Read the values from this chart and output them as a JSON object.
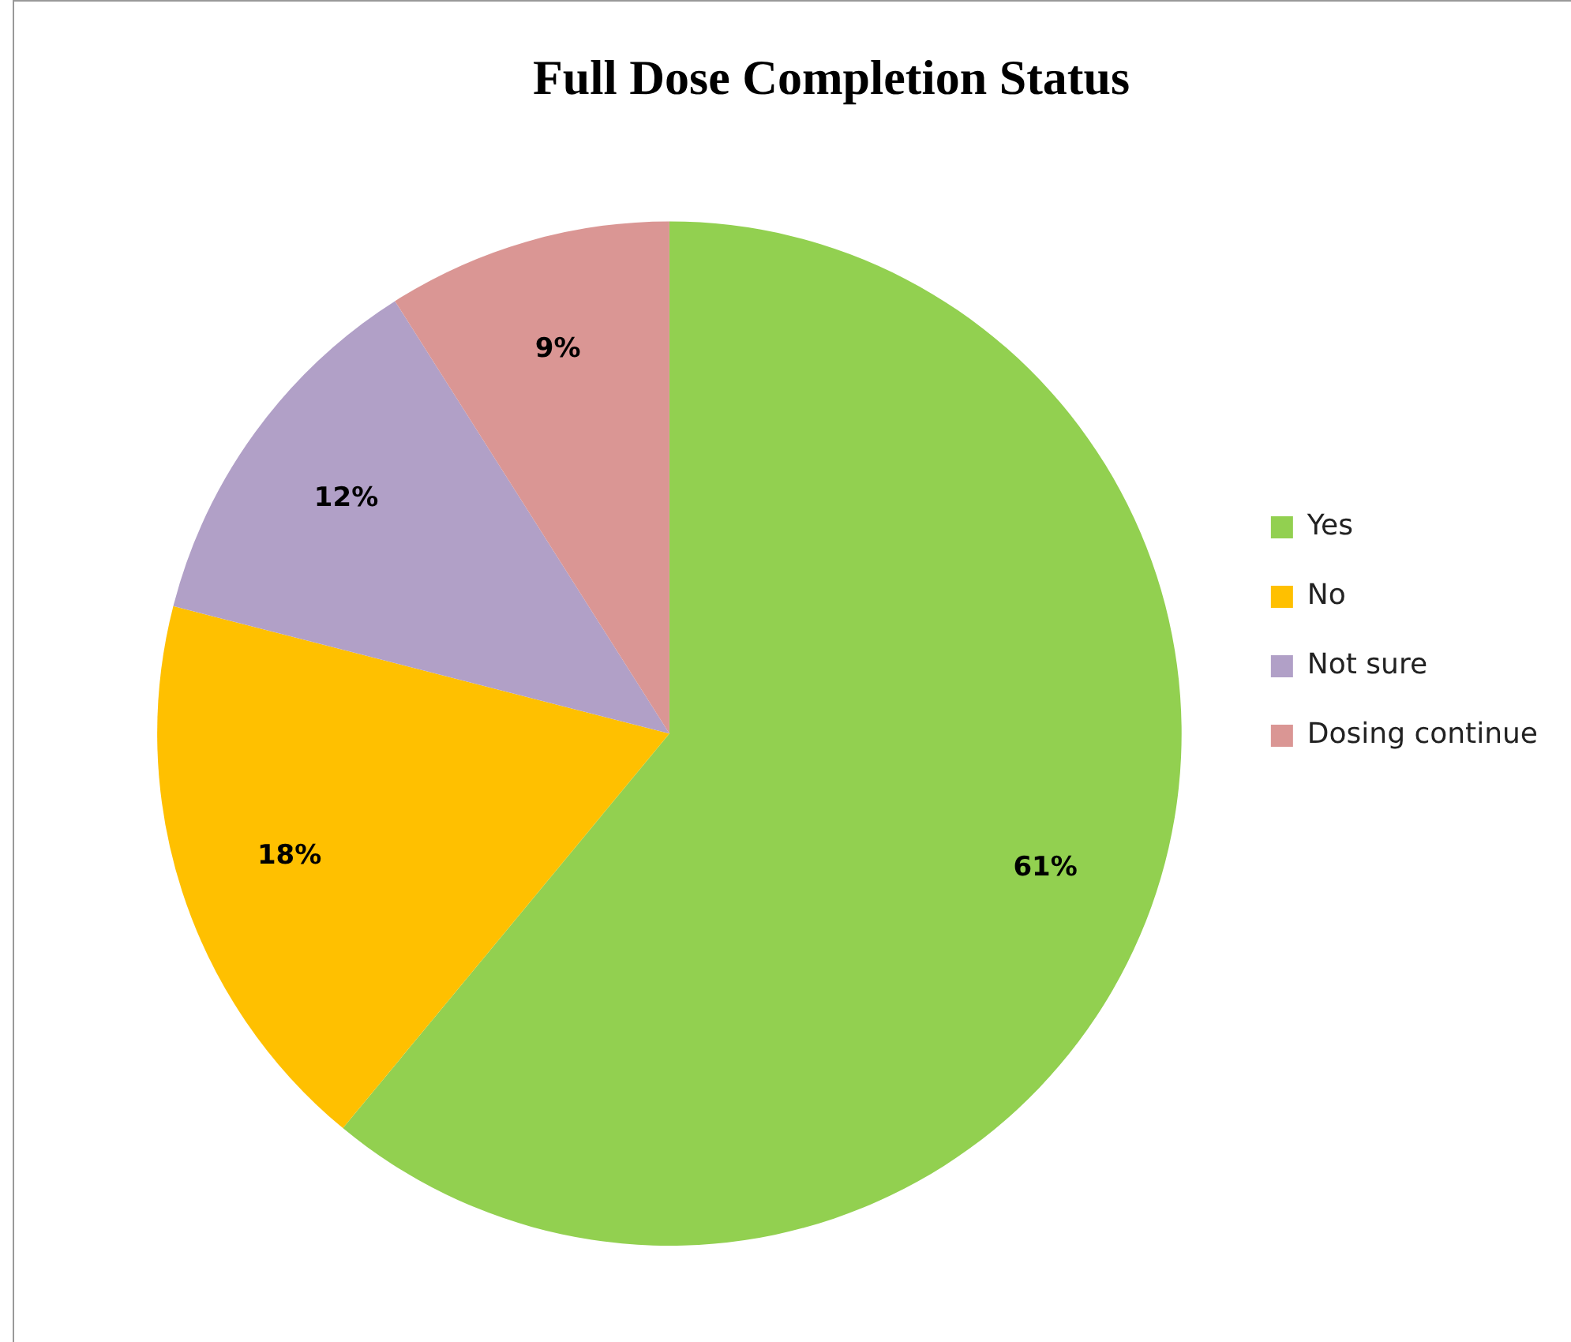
{
  "chart_data": {
    "type": "pie",
    "title": "Full Dose Completion Status",
    "categories": [
      "Yes",
      "No",
      "Not sure",
      "Dosing continue"
    ],
    "values": [
      61,
      18,
      12,
      9
    ],
    "colors": [
      "#92d050",
      "#ffc000",
      "#b1a0c7",
      "#da9694"
    ],
    "value_labels": [
      "61%",
      "18%",
      "12%",
      "9%"
    ],
    "legend": "right"
  }
}
